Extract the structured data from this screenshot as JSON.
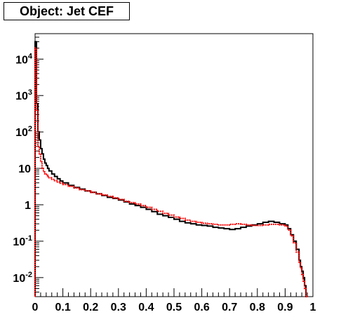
{
  "chart_data": {
    "type": "line",
    "title": "Object: Jet CEF",
    "xlabel": "",
    "ylabel": "",
    "xlim": [
      0,
      1
    ],
    "ylim": [
      0.003,
      50000
    ],
    "log_y": true,
    "grid": false,
    "x_ticks": [
      "0",
      "0.1",
      "0.2",
      "0.3",
      "0.4",
      "0.5",
      "0.6",
      "0.7",
      "0.8",
      "0.9",
      "1"
    ],
    "y_ticks": [
      {
        "base": "10",
        "exp": "-2",
        "value": 0.01
      },
      {
        "base": "10",
        "exp": "-1",
        "value": 0.1
      },
      {
        "base": "1",
        "exp": "",
        "value": 1
      },
      {
        "base": "10",
        "exp": "",
        "value": 10
      },
      {
        "base": "10",
        "exp": "2",
        "value": 100
      },
      {
        "base": "10",
        "exp": "3",
        "value": 1000
      },
      {
        "base": "10",
        "exp": "4",
        "value": 10000
      }
    ],
    "series": [
      {
        "color": "#000000",
        "style": "solid",
        "x": [
          0.0,
          0.005,
          0.01,
          0.015,
          0.02,
          0.025,
          0.03,
          0.035,
          0.04,
          0.045,
          0.05,
          0.06,
          0.07,
          0.08,
          0.09,
          0.1,
          0.12,
          0.14,
          0.16,
          0.18,
          0.2,
          0.22,
          0.24,
          0.26,
          0.28,
          0.3,
          0.32,
          0.34,
          0.36,
          0.38,
          0.4,
          0.42,
          0.44,
          0.46,
          0.48,
          0.5,
          0.52,
          0.54,
          0.56,
          0.58,
          0.6,
          0.62,
          0.64,
          0.66,
          0.68,
          0.7,
          0.72,
          0.74,
          0.76,
          0.78,
          0.8,
          0.82,
          0.84,
          0.86,
          0.88,
          0.9,
          0.91,
          0.92,
          0.93,
          0.94,
          0.95,
          0.955,
          0.96,
          0.965,
          0.97,
          0.975
        ],
        "y": [
          30000,
          600,
          100,
          60,
          35,
          25,
          18,
          14,
          12,
          10,
          8.5,
          7,
          6,
          5.2,
          4.5,
          4,
          3.4,
          3,
          2.7,
          2.4,
          2.2,
          2.0,
          1.8,
          1.6,
          1.5,
          1.35,
          1.2,
          1.05,
          0.95,
          0.85,
          0.75,
          0.65,
          0.55,
          0.5,
          0.45,
          0.4,
          0.35,
          0.32,
          0.3,
          0.28,
          0.27,
          0.26,
          0.24,
          0.23,
          0.22,
          0.21,
          0.22,
          0.24,
          0.26,
          0.28,
          0.3,
          0.33,
          0.35,
          0.33,
          0.3,
          0.28,
          0.22,
          0.15,
          0.1,
          0.06,
          0.03,
          0.02,
          0.015,
          0.01,
          0.006,
          0.003
        ]
      },
      {
        "color": "#ff0000",
        "style": "dotted",
        "x": [
          0.0,
          0.005,
          0.01,
          0.015,
          0.02,
          0.025,
          0.03,
          0.035,
          0.04,
          0.045,
          0.05,
          0.06,
          0.07,
          0.08,
          0.09,
          0.1,
          0.12,
          0.14,
          0.16,
          0.18,
          0.2,
          0.22,
          0.24,
          0.26,
          0.28,
          0.3,
          0.32,
          0.34,
          0.36,
          0.38,
          0.4,
          0.42,
          0.44,
          0.46,
          0.48,
          0.5,
          0.52,
          0.54,
          0.56,
          0.58,
          0.6,
          0.62,
          0.64,
          0.66,
          0.68,
          0.7,
          0.72,
          0.74,
          0.76,
          0.78,
          0.8,
          0.82,
          0.84,
          0.86,
          0.88,
          0.9,
          0.91,
          0.92,
          0.93,
          0.94,
          0.95,
          0.955,
          0.96,
          0.965,
          0.97,
          0.975
        ],
        "y": [
          20000,
          400,
          40,
          25,
          15,
          10,
          8,
          7,
          6.5,
          6,
          5.5,
          5,
          4.6,
          4.2,
          3.9,
          3.6,
          3.2,
          2.9,
          2.6,
          2.4,
          2.2,
          2.0,
          1.85,
          1.7,
          1.55,
          1.4,
          1.25,
          1.15,
          1.05,
          0.95,
          0.85,
          0.75,
          0.66,
          0.58,
          0.52,
          0.46,
          0.42,
          0.38,
          0.35,
          0.33,
          0.31,
          0.3,
          0.29,
          0.28,
          0.28,
          0.29,
          0.3,
          0.29,
          0.28,
          0.27,
          0.27,
          0.28,
          0.29,
          0.29,
          0.28,
          0.26,
          0.2,
          0.14,
          0.09,
          0.05,
          0.025,
          0.018,
          0.012,
          0.008,
          0.005,
          0.003
        ]
      }
    ]
  }
}
